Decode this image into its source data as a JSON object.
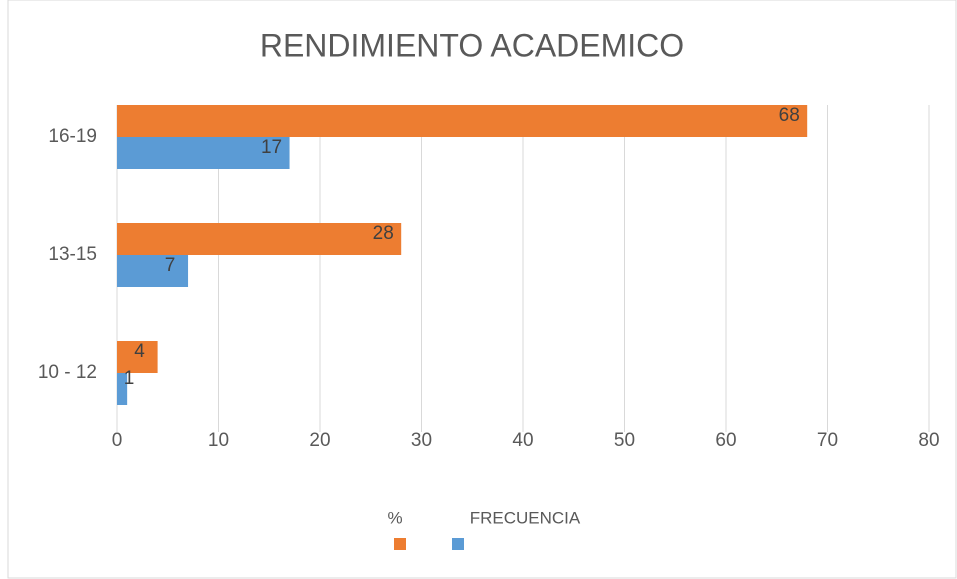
{
  "chart_data": {
    "type": "hbar",
    "title": "RENDIMIENTO ACADEMICO",
    "categories": [
      "10 - 12",
      "13-15",
      "16-19"
    ],
    "series": [
      {
        "name": "%",
        "color": "#ed7d31",
        "values": [
          4,
          28,
          68
        ]
      },
      {
        "name": "FRECUENCIA",
        "color": "#5b9bd5",
        "values": [
          1,
          7,
          17
        ]
      }
    ],
    "xlim": [
      0,
      80
    ],
    "xticks": [
      0,
      10,
      20,
      30,
      40,
      50,
      60,
      70,
      80
    ],
    "grid": true,
    "legend": "bottom"
  }
}
